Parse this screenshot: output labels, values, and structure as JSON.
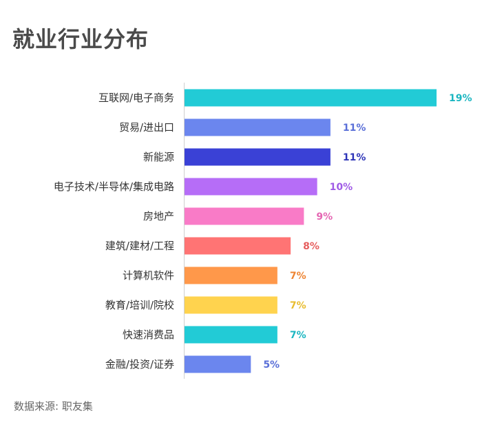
{
  "title": "就业行业分布",
  "source": "数据来源: 职友集",
  "chart_data": {
    "type": "bar",
    "orientation": "horizontal",
    "title": "就业行业分布",
    "xlim": [
      0,
      19
    ],
    "categories": [
      "互联网/电子商务",
      "贸易/进出口",
      "新能源",
      "电子技术/半导体/集成电路",
      "房地产",
      "建筑/建材/工程",
      "计算机软件",
      "教育/培训/院校",
      "快速消费品",
      "金融/投资/证券"
    ],
    "values": [
      19,
      11,
      11,
      10,
      9,
      8,
      7,
      7,
      7,
      5
    ],
    "value_labels": [
      "19%",
      "11%",
      "11%",
      "10%",
      "9%",
      "8%",
      "7%",
      "7%",
      "7%",
      "5%"
    ],
    "colors": [
      "#22CBD6",
      "#6B86EE",
      "#3A41D6",
      "#B66DF7",
      "#F97BC7",
      "#FF7474",
      "#FF984A",
      "#FFD34E",
      "#22CBD6",
      "#6B86EE"
    ],
    "label_colors": [
      "#1BB6C1",
      "#5A6FD8",
      "#2E35B8",
      "#A05BE6",
      "#E565B2",
      "#E65E5E",
      "#EE8432",
      "#E8BC2E",
      "#1BB6C1",
      "#5A6FD8"
    ]
  }
}
